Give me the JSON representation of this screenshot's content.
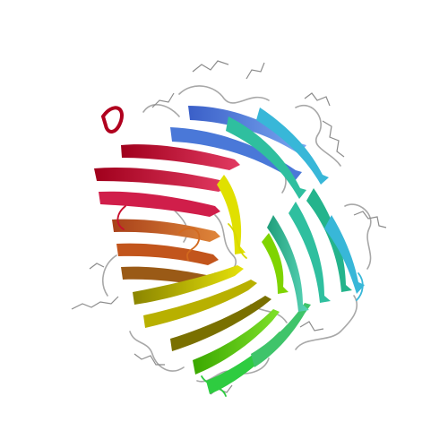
{
  "image": {
    "subject": "protein-structure-ribbon",
    "background": "#ffffff",
    "palette": {
      "red": "#c8102e",
      "crimson": "#d01e4a",
      "orange": "#d2691e",
      "brown": "#8b6914",
      "olive": "#a8a000",
      "yellow": "#d8d800",
      "lime": "#7fd400",
      "green": "#2ecc40",
      "teal": "#2fbf9f",
      "cyan": "#38b7d8",
      "blue": "#4a78d8",
      "ligand": "#9a9a9a",
      "loop": "#a0a0a0"
    }
  }
}
